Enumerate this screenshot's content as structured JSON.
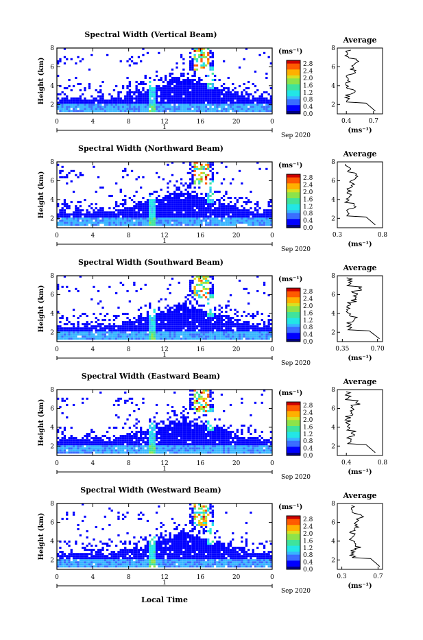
{
  "figure": {
    "date_label": "Sep 2020",
    "bottom_xlabel": "Local Time",
    "colors": {
      "jet": [
        "#000080",
        "#0000ff",
        "#3a6cff",
        "#37b5ff",
        "#22e6e6",
        "#3fe39c",
        "#8de34a",
        "#d9e021",
        "#ffb000",
        "#ff5a00",
        "#cc0000"
      ],
      "background": "#ffffff",
      "axis": "#000000"
    }
  },
  "chart_data": [
    {
      "type": "heatmap",
      "title": "Spectral Width (Vertical Beam)",
      "ylabel": "Height (km)",
      "x_ticks": [
        "0",
        "4",
        "8",
        "12",
        "16",
        "20",
        "0"
      ],
      "x_day_label": "1",
      "y_ticks": [
        "2",
        "4",
        "6",
        "8"
      ],
      "xlim": [
        0,
        24
      ],
      "ylim": [
        1,
        8
      ],
      "colorbar": {
        "unit": "(ms⁻¹)",
        "ticks": [
          "0.0",
          "0.4",
          "0.8",
          "1.2",
          "1.6",
          "2.0",
          "2.4",
          "2.8"
        ],
        "range": [
          0,
          3.0
        ]
      },
      "average": {
        "title": "Average",
        "xlabel": "(ms⁻¹)",
        "x_ticks": [
          "0.4",
          "0.7"
        ],
        "xlim": [
          0.3,
          0.8
        ],
        "y_ticks": [
          "2",
          "4",
          "6",
          "8"
        ]
      }
    },
    {
      "type": "heatmap",
      "title": "Spectral Width (Northward Beam)",
      "ylabel": "Height (km)",
      "x_ticks": [
        "0",
        "4",
        "8",
        "12",
        "16",
        "20",
        "0"
      ],
      "x_day_label": "1",
      "y_ticks": [
        "2",
        "4",
        "6",
        "8"
      ],
      "xlim": [
        0,
        24
      ],
      "ylim": [
        1,
        8
      ],
      "colorbar": {
        "unit": "(ms⁻¹)",
        "ticks": [
          "0.0",
          "0.4",
          "0.8",
          "1.2",
          "1.6",
          "2.0",
          "2.4",
          "2.8"
        ],
        "range": [
          0,
          3.0
        ]
      },
      "average": {
        "title": "Average",
        "xlabel": "(ms⁻¹)",
        "x_ticks": [
          "0.3",
          "0.8"
        ],
        "xlim": [
          0.3,
          0.8
        ],
        "y_ticks": [
          "2",
          "4",
          "6",
          "8"
        ]
      }
    },
    {
      "type": "heatmap",
      "title": "Spectral Width (Southward Beam)",
      "ylabel": "Height (km)",
      "x_ticks": [
        "0",
        "4",
        "8",
        "12",
        "16",
        "20",
        "0"
      ],
      "x_day_label": "1",
      "y_ticks": [
        "2",
        "4",
        "6",
        "8"
      ],
      "xlim": [
        0,
        24
      ],
      "ylim": [
        1,
        8
      ],
      "colorbar": {
        "unit": "(ms⁻¹)",
        "ticks": [
          "0.0",
          "0.4",
          "0.8",
          "1.2",
          "1.6",
          "2.0",
          "2.4",
          "2.8"
        ],
        "range": [
          0,
          3.0
        ]
      },
      "average": {
        "title": "Average",
        "xlabel": "(ms⁻¹)",
        "x_ticks": [
          "0.35",
          "0.70"
        ],
        "xlim": [
          0.3,
          0.75
        ],
        "y_ticks": [
          "2",
          "4",
          "6",
          "8"
        ]
      }
    },
    {
      "type": "heatmap",
      "title": "Spectral Width (Eastward Beam)",
      "ylabel": "Height (km)",
      "x_ticks": [
        "0",
        "4",
        "8",
        "12",
        "16",
        "20",
        "0"
      ],
      "x_day_label": "1",
      "y_ticks": [
        "2",
        "4",
        "6",
        "8"
      ],
      "xlim": [
        0,
        24
      ],
      "ylim": [
        1,
        8
      ],
      "colorbar": {
        "unit": "(ms⁻¹)",
        "ticks": [
          "0.0",
          "0.4",
          "0.8",
          "1.2",
          "1.6",
          "2.0",
          "2.4",
          "2.8"
        ],
        "range": [
          0,
          3.0
        ]
      },
      "average": {
        "title": "Average",
        "xlabel": "(ms⁻¹)",
        "x_ticks": [
          "0.4",
          "0.8"
        ],
        "xlim": [
          0.3,
          0.8
        ],
        "y_ticks": [
          "2",
          "4",
          "6",
          "8"
        ]
      }
    },
    {
      "type": "heatmap",
      "title": "Spectral Width (Westward Beam)",
      "ylabel": "Height (km)",
      "x_ticks": [
        "0",
        "4",
        "8",
        "12",
        "16",
        "20",
        "0"
      ],
      "x_day_label": "1",
      "y_ticks": [
        "2",
        "4",
        "6",
        "8"
      ],
      "xlim": [
        0,
        24
      ],
      "ylim": [
        1,
        8
      ],
      "colorbar": {
        "unit": "(ms⁻¹)",
        "ticks": [
          "0.0",
          "0.4",
          "0.8",
          "1.2",
          "1.6",
          "2.0",
          "2.4",
          "2.8"
        ],
        "range": [
          0,
          3.0
        ]
      },
      "average": {
        "title": "Average",
        "xlabel": "(ms⁻¹)",
        "x_ticks": [
          "0.3",
          "0.7"
        ],
        "xlim": [
          0.25,
          0.75
        ],
        "y_ticks": [
          "2",
          "4",
          "6",
          "8"
        ]
      }
    }
  ]
}
